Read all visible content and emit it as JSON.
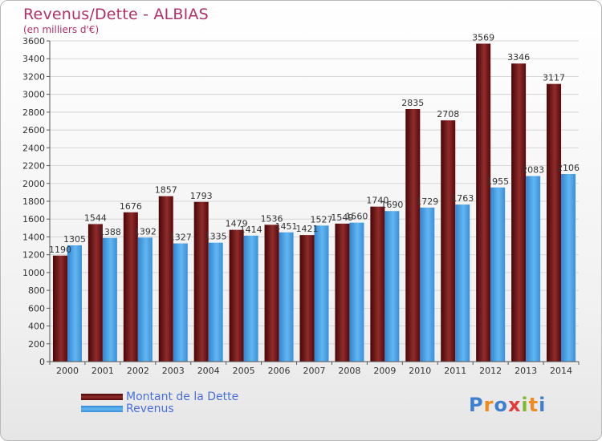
{
  "title": "Revenus/Dette - ALBIAS",
  "subtitle": "(en milliers d'€)",
  "logo": {
    "text": "Proxiti",
    "letters": [
      "P",
      "r",
      "o",
      "x",
      "i",
      "t",
      "i"
    ],
    "colors": [
      "#3f7fd0",
      "#f08a1c",
      "#3f7fd0",
      "#e23c3c",
      "#7dbb2e",
      "#f08a1c",
      "#3f7fd0"
    ]
  },
  "colors": {
    "dette": "#6e1010",
    "revenus": "#3f9ee8",
    "text": "#b0306a"
  },
  "chart_data": {
    "type": "bar",
    "title": "Revenus/Dette - ALBIAS",
    "ylabel": "(en milliers d'€)",
    "ylim": [
      0,
      3600
    ],
    "ytick_step": 200,
    "grid": true,
    "legend": "bottom-left",
    "categories": [
      "2000",
      "2001",
      "2002",
      "2003",
      "2004",
      "2005",
      "2006",
      "2007",
      "2008",
      "2009",
      "2010",
      "2011",
      "2012",
      "2013",
      "2014"
    ],
    "series": [
      {
        "name": "Montant de la Dette",
        "values": [
          1190,
          1544,
          1676,
          1857,
          1793,
          1479,
          1536,
          1421,
          1549,
          1740,
          2835,
          2708,
          3569,
          3346,
          3117
        ]
      },
      {
        "name": "Revenus",
        "values": [
          1305,
          1388,
          1392,
          1327,
          1335,
          1414,
          1451,
          1527,
          1560,
          1690,
          1729,
          1763,
          1955,
          2083,
          2106
        ]
      }
    ],
    "value_labels": [
      [
        "1190",
        "1544",
        "1676",
        "1857",
        "1793",
        "1479",
        "1536",
        "1421",
        "1549",
        "1740",
        "2835",
        "2708",
        "3569",
        "3346",
        "3117"
      ],
      [
        "1305",
        "1388",
        "1392",
        "1327",
        "1335",
        "1414",
        "1451",
        "1527",
        "1560",
        "1690",
        "1729",
        "1763",
        "1955",
        "2083",
        "2106"
      ]
    ]
  }
}
